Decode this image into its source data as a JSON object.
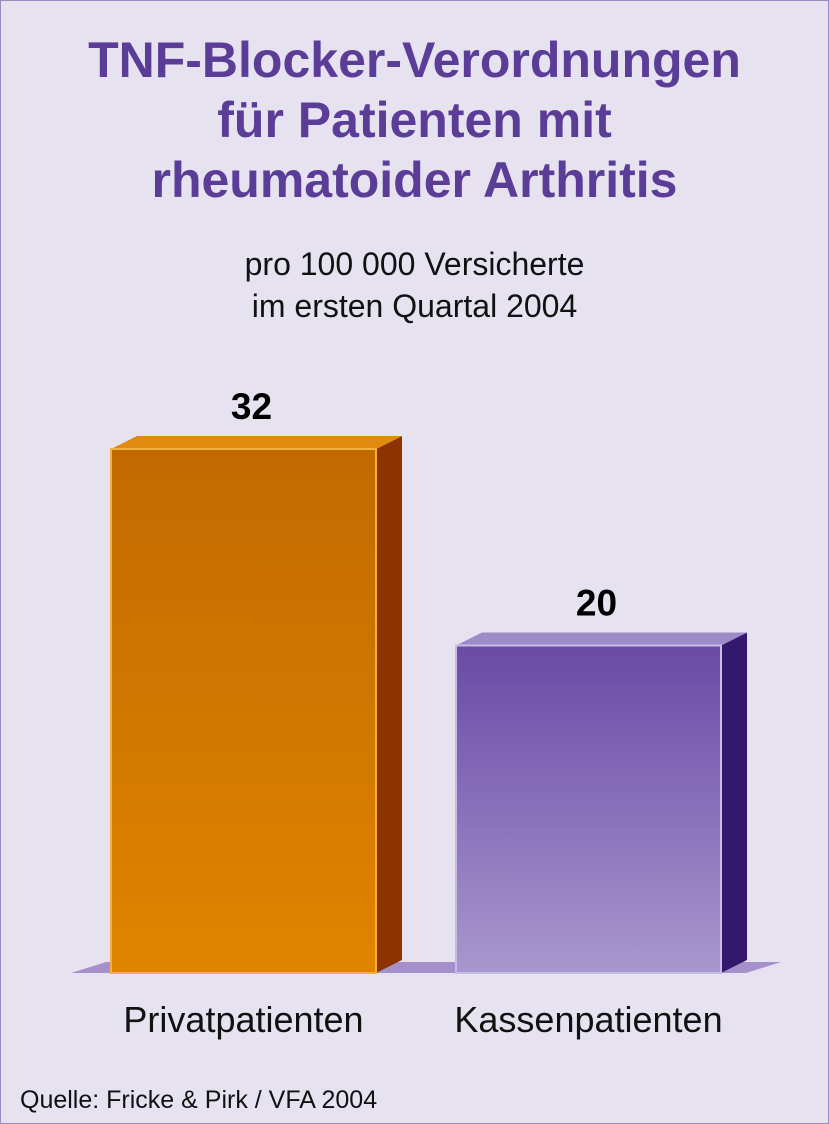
{
  "chart_data": {
    "type": "bar",
    "title_lines": [
      "TNF-Blocker-Verordnungen",
      "für Patienten mit",
      "rheumatoider Arthritis"
    ],
    "subtitle_lines": [
      "pro 100 000 Versicherte",
      "im ersten Quartal 2004"
    ],
    "categories": [
      "Privatpatienten",
      "Kassenpatienten"
    ],
    "values": [
      32,
      20
    ],
    "value_labels": [
      "32",
      "20"
    ],
    "ylim": [
      0,
      32
    ],
    "grid": false,
    "colors": {
      "bar_1_top": "#c26a00",
      "bar_1_bottom": "#e08400",
      "bar_1_side": "#8c3300",
      "bar_1_cap": "#e08a10",
      "bar_2_top": "#6a4aa6",
      "bar_2_bottom": "#a897ce",
      "bar_2_side": "#34186e",
      "bar_2_cap": "#9c8bc8",
      "floor": "#a690cc"
    },
    "source": "Quelle: Fricke & Pirk / VFA 2004"
  }
}
